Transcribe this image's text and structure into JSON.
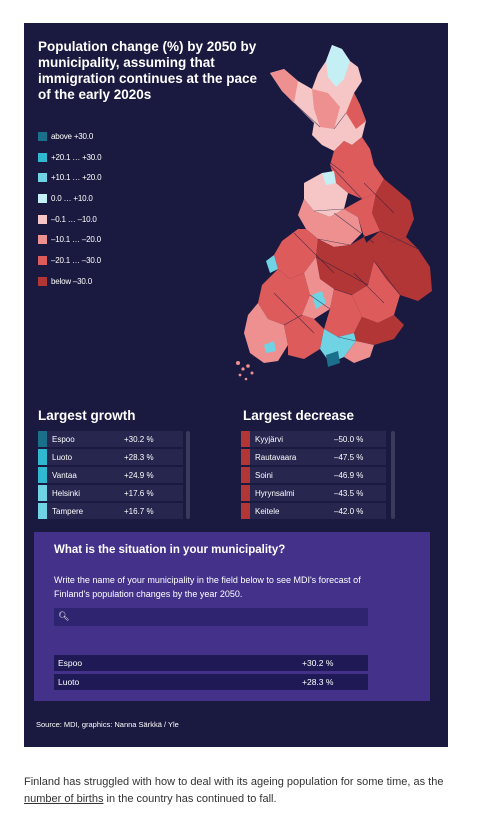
{
  "title": "Population change (%) by 2050 by municipality, assuming that immigration continues at the pace of the early 2020s",
  "legend": [
    {
      "label": "above +30.0",
      "color": "#1a6f8a"
    },
    {
      "label": "+20.1 … +30.0",
      "color": "#30b8d0"
    },
    {
      "label": "+10.1 … +20.0",
      "color": "#6fd3e3"
    },
    {
      "label": "0.0 … +10.0",
      "color": "#c4eff5"
    },
    {
      "label": "–0.1 … –10.0",
      "color": "#f6c6c6"
    },
    {
      "label": "–10.1 … –20.0",
      "color": "#ee9090"
    },
    {
      "label": "–20.1 … –30.0",
      "color": "#de5b5b"
    },
    {
      "label": "below –30.0",
      "color": "#b23636"
    }
  ],
  "growth": {
    "title": "Largest growth",
    "rows": [
      {
        "name": "Espoo",
        "value": "+30.2 %",
        "color": "#1a6f8a"
      },
      {
        "name": "Luoto",
        "value": "+28.3 %",
        "color": "#30b8d0"
      },
      {
        "name": "Vantaa",
        "value": "+24.9 %",
        "color": "#30b8d0"
      },
      {
        "name": "Helsinki",
        "value": "+17.6 %",
        "color": "#6fd3e3"
      },
      {
        "name": "Tampere",
        "value": "+16.7 %",
        "color": "#6fd3e3"
      }
    ]
  },
  "decrease": {
    "title": "Largest decrease",
    "rows": [
      {
        "name": "Kyyjärvi",
        "value": "–50.0 %",
        "color": "#b23636"
      },
      {
        "name": "Rautavaara",
        "value": "–47.5 %",
        "color": "#b23636"
      },
      {
        "name": "Soini",
        "value": "–46.9 %",
        "color": "#b23636"
      },
      {
        "name": "Hyrynsalmi",
        "value": "–43.5 %",
        "color": "#b23636"
      },
      {
        "name": "Keitele",
        "value": "–42.0 %",
        "color": "#b23636"
      }
    ]
  },
  "lookup": {
    "title": "What is the situation in your municipality?",
    "description": "Write the name of your municipality in the field below to see MDI's forecast of Finland's population changes by the year 2050.",
    "search_placeholder": "",
    "results": [
      {
        "name": "Espoo",
        "value": "+30.2 %"
      },
      {
        "name": "Luoto",
        "value": "+28.3 %"
      }
    ]
  },
  "source": "Source: MDI, graphics: Nanna Särkkä / Yle",
  "article": {
    "text_before": "Finland has struggled with how to deal with its ageing population for some time, as the ",
    "link": "number of births",
    "text_after": " in the country has continued to fall."
  }
}
